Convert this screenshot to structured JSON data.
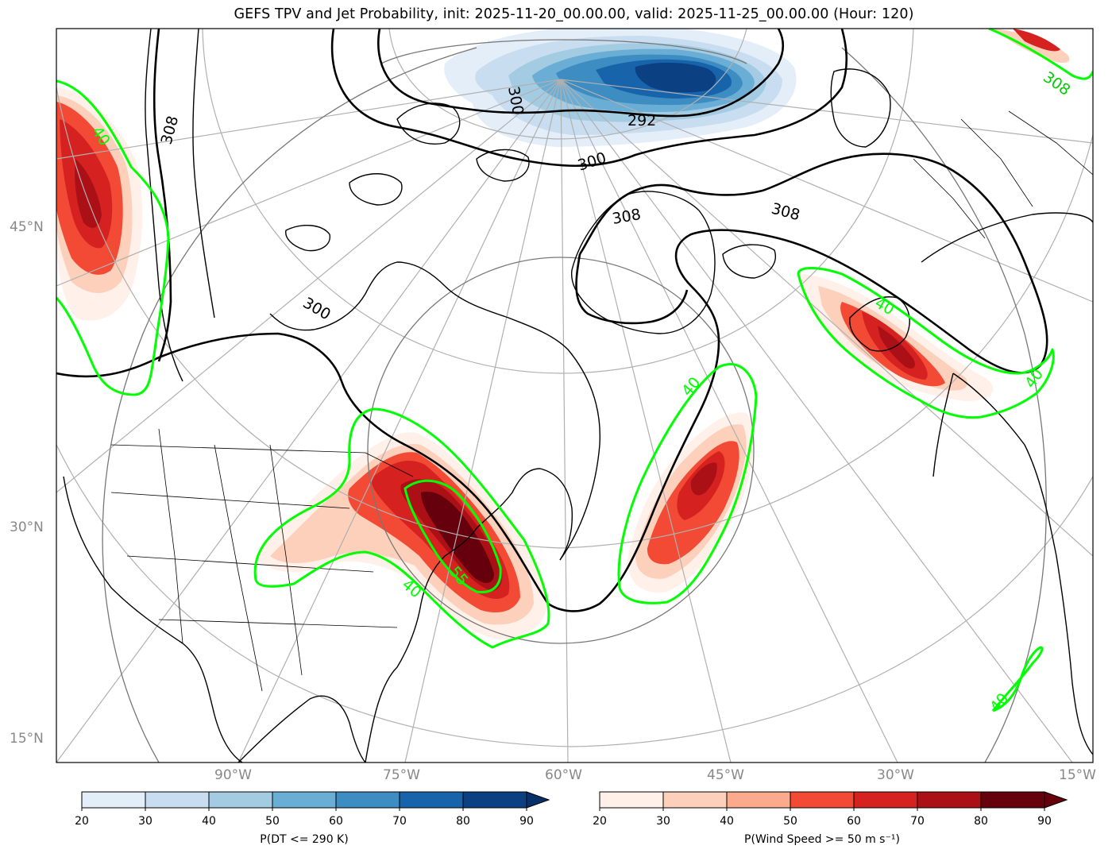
{
  "title": "GEFS TPV and Jet Probability, init: 2025-11-20_00.00.00, valid: 2025-11-25_00.00.00 (Hour: 120)",
  "lat_labels": [
    "45°N",
    "30°N",
    "15°N"
  ],
  "lon_labels": [
    "90°W",
    "75°W",
    "60°W",
    "45°W",
    "30°W",
    "15°W"
  ],
  "contour_labels": {
    "theta_black": [
      "308",
      "300",
      "292",
      "300",
      "308",
      "308",
      "300",
      "308"
    ],
    "jet_green": [
      "40",
      "40",
      "40",
      "40",
      "55",
      "40",
      "40"
    ]
  },
  "colorbars": [
    {
      "label": "P(DT <= 290 K)",
      "ticks": [
        "20",
        "30",
        "40",
        "50",
        "60",
        "70",
        "80",
        "90"
      ],
      "colors": [
        "#e3eef9",
        "#c9ddf0",
        "#a3cce3",
        "#6aaed6",
        "#3d8dc3",
        "#1764ab",
        "#0b4083"
      ],
      "extend_color": "#08306b"
    },
    {
      "label": "P(Wind Speed >= 50 m s⁻¹)",
      "ticks": [
        "20",
        "30",
        "40",
        "50",
        "60",
        "70",
        "80",
        "90"
      ],
      "colors": [
        "#fff0e9",
        "#fdd0bb",
        "#fcaa8e",
        "#f24a35",
        "#d52221",
        "#ab1016",
        "#67000d"
      ],
      "extend_color": "#67000d"
    }
  ],
  "colors": {
    "jet_contour": "#00ff00",
    "theta_contour": "#000000",
    "graticule": "#b0b0b0",
    "axis_label": "#888888"
  }
}
